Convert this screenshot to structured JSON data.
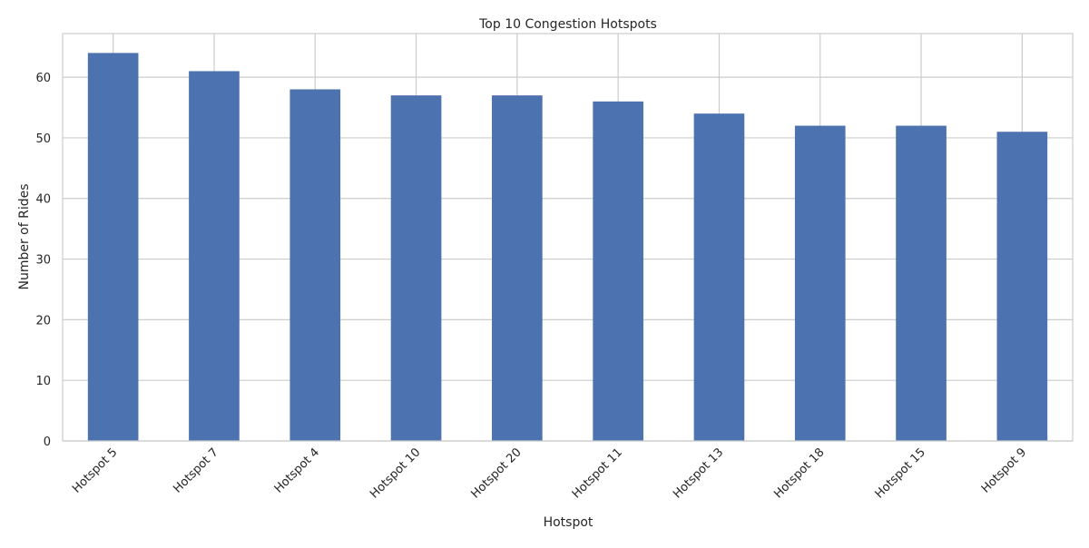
{
  "chart_data": {
    "type": "bar",
    "title": "Top 10 Congestion Hotspots",
    "xlabel": "Hotspot",
    "ylabel": "Number of Rides",
    "categories": [
      "Hotspot 5",
      "Hotspot 7",
      "Hotspot 4",
      "Hotspot 10",
      "Hotspot 20",
      "Hotspot 11",
      "Hotspot 13",
      "Hotspot 18",
      "Hotspot 15",
      "Hotspot 9"
    ],
    "values": [
      64,
      61,
      58,
      57,
      57,
      56,
      54,
      52,
      52,
      51
    ],
    "ylim": [
      0,
      67.2
    ],
    "yticks": [
      0,
      10,
      20,
      30,
      40,
      50,
      60
    ],
    "grid": true,
    "legend": "none",
    "colors": {
      "bar": "#4c72b0",
      "grid": "#cccccc",
      "axes": "#cccccc",
      "background": "#ffffff",
      "text": "#262626"
    }
  }
}
